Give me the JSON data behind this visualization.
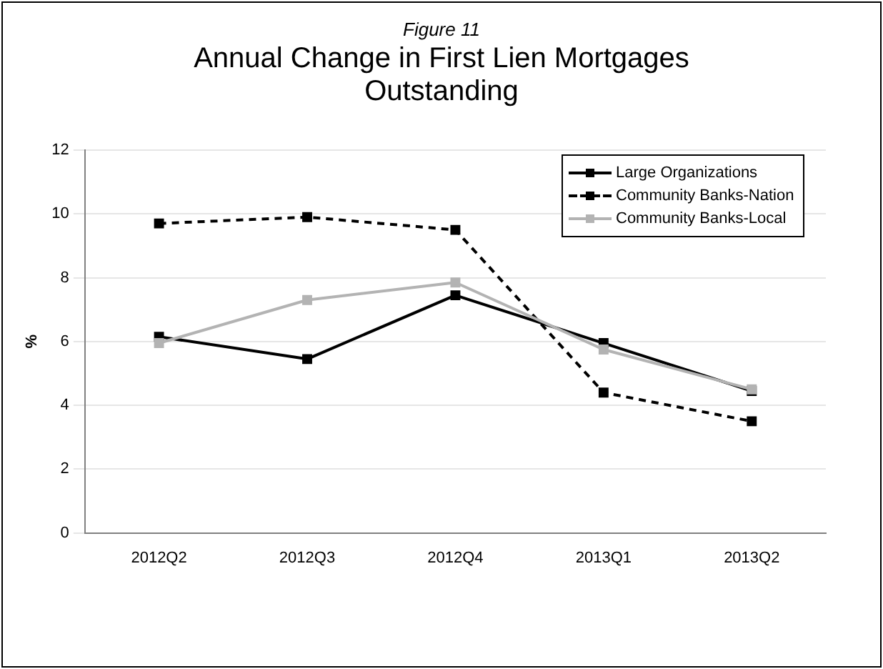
{
  "chart_data": {
    "type": "line",
    "title": "Annual Change in First Lien Mortgages Outstanding",
    "subtitle": "Figure 11",
    "ylabel": "%",
    "categories": [
      "2012Q2",
      "2012Q3",
      "2012Q4",
      "2013Q1",
      "2013Q2"
    ],
    "series": [
      {
        "name": "Large Organizations",
        "color": "#000000",
        "values": [
          6.15,
          5.45,
          7.45,
          5.95,
          4.45
        ],
        "line_style": "solid"
      },
      {
        "name": "Community Banks-Nation",
        "color": "#000000",
        "values": [
          9.7,
          9.9,
          9.5,
          4.4,
          3.5
        ],
        "line_style": "dashed"
      },
      {
        "name": "Community Banks-Local",
        "color": "#b3b3b3",
        "values": [
          5.95,
          7.3,
          7.85,
          5.75,
          4.5
        ],
        "line_style": "solid"
      }
    ],
    "ylim": [
      0,
      12
    ],
    "yticks": [
      0,
      2,
      4,
      6,
      8,
      10,
      12
    ],
    "grid": "y",
    "legend": "top right",
    "marker": "square"
  }
}
